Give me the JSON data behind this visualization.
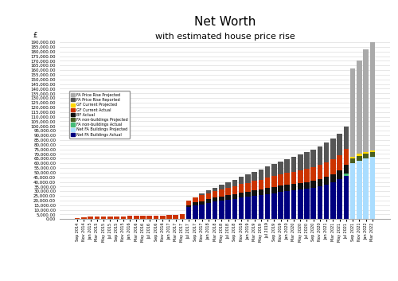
{
  "title": "Net Worth",
  "subtitle": "with estimated house price rise",
  "ylabel": "£",
  "ylim": [
    0,
    190000
  ],
  "ytick_step": 5000,
  "months": [
    "Sep 2014",
    "Nov 2014",
    "Jan 2015",
    "Mar 2015",
    "May 2015",
    "Jul 2015",
    "Sep 2015",
    "Nov 2015",
    "Jan 2016",
    "Mar 2016",
    "May 2016",
    "Jul 2016",
    "Sep 2016",
    "Nov 2016",
    "Jan 2017",
    "Mar 2017",
    "May 2017",
    "Jul 2017",
    "Sep 2017",
    "Nov 2017",
    "Jan 2018",
    "Mar 2018",
    "May 2018",
    "Jul 2018",
    "Sep 2018",
    "Nov 2018",
    "Jan 2019",
    "Mar 2019",
    "May 2019",
    "Jul 2019",
    "Sep 2019",
    "Nov 2019",
    "Jan 2020",
    "Mar 2020",
    "May 2020",
    "Jul 2020",
    "Sep 2020",
    "Nov 2020",
    "Jan 2021",
    "Mar 2021",
    "May 2021",
    "Jul 2021",
    "Sep 2021",
    "Nov 2021",
    "Jan 2022",
    "Mar 2022"
  ],
  "colors": {
    "FA Price Rise Projected": "#AAAAAA",
    "FA Price Rise Reported": "#555555",
    "GF Current Projected": "#FFD700",
    "GF Current Actual": "#CC3300",
    "BF Actual": "#111111",
    "FA non-buildings Projected": "#4A5E20",
    "FA non-buildings Actual": "#44BB77",
    "Net FA Buildings Projected": "#AADDFF",
    "Net FA Buildings Actual": "#000080"
  },
  "series_order": [
    "Net FA Buildings Actual",
    "Net FA Buildings Projected",
    "FA non-buildings Actual",
    "FA non-buildings Projected",
    "BF Actual",
    "GF Current Actual",
    "GF Current Projected",
    "FA Price Rise Reported",
    "FA Price Rise Projected"
  ],
  "legend_order": [
    "FA Price Rise Projected",
    "FA Price Rise Reported",
    "GF Current Projected",
    "GF Current Actual",
    "BF Actual",
    "FA non-buildings Projected",
    "FA non-buildings Actual",
    "Net FA Buildings Projected",
    "Net FA Buildings Actual"
  ],
  "data": {
    "FA Price Rise Projected": [
      0,
      0,
      0,
      0,
      0,
      0,
      0,
      0,
      0,
      0,
      0,
      0,
      0,
      0,
      0,
      0,
      0,
      0,
      0,
      0,
      0,
      0,
      0,
      0,
      0,
      0,
      0,
      0,
      0,
      0,
      0,
      0,
      0,
      0,
      0,
      0,
      0,
      0,
      0,
      0,
      0,
      0,
      95000,
      100000,
      110000,
      120000
    ],
    "FA Price Rise Reported": [
      0,
      0,
      0,
      0,
      0,
      0,
      0,
      0,
      0,
      0,
      0,
      0,
      0,
      0,
      0,
      0,
      0,
      0,
      0,
      2500,
      3000,
      4000,
      5000,
      6000,
      7000,
      8000,
      9000,
      10000,
      11000,
      12000,
      13000,
      14000,
      15000,
      16000,
      17000,
      18000,
      19000,
      20000,
      21000,
      22000,
      23000,
      24000,
      0,
      0,
      0,
      0
    ],
    "GF Current Projected": [
      0,
      0,
      0,
      0,
      0,
      0,
      0,
      0,
      0,
      0,
      0,
      0,
      0,
      0,
      0,
      0,
      0,
      0,
      0,
      0,
      0,
      0,
      0,
      0,
      0,
      0,
      0,
      0,
      0,
      0,
      0,
      0,
      0,
      0,
      0,
      0,
      0,
      0,
      0,
      0,
      0,
      0,
      2000,
      2000,
      2000,
      2000
    ],
    "GF Current Actual": [
      1500,
      2000,
      2500,
      2500,
      2500,
      3000,
      3000,
      3000,
      3500,
      3500,
      4000,
      4000,
      4000,
      4000,
      4500,
      4500,
      5000,
      5000,
      5500,
      6000,
      6500,
      7000,
      7500,
      8000,
      8500,
      9000,
      9500,
      10000,
      10500,
      11000,
      11500,
      12000,
      12500,
      13000,
      13500,
      14000,
      14500,
      15000,
      15500,
      16000,
      16500,
      17000,
      0,
      0,
      0,
      0
    ],
    "BF Actual": [
      0,
      0,
      0,
      0,
      0,
      0,
      0,
      0,
      0,
      0,
      0,
      0,
      0,
      0,
      0,
      0,
      0,
      2000,
      3000,
      3500,
      4000,
      4000,
      4500,
      5000,
      5000,
      5500,
      5500,
      6000,
      6000,
      6500,
      6500,
      7000,
      7000,
      7000,
      7000,
      7000,
      7500,
      8000,
      8500,
      8500,
      9000,
      9500,
      0,
      0,
      0,
      0
    ],
    "FA non-buildings Projected": [
      0,
      0,
      0,
      0,
      0,
      0,
      0,
      0,
      0,
      0,
      0,
      0,
      0,
      0,
      0,
      0,
      0,
      0,
      0,
      0,
      0,
      0,
      0,
      0,
      0,
      0,
      0,
      0,
      0,
      0,
      0,
      0,
      0,
      0,
      0,
      0,
      0,
      0,
      0,
      0,
      0,
      0,
      5000,
      5000,
      5000,
      5000
    ],
    "FA non-buildings Actual": [
      0,
      0,
      0,
      0,
      0,
      0,
      0,
      0,
      0,
      0,
      0,
      0,
      0,
      0,
      0,
      0,
      0,
      0,
      0,
      0,
      0,
      0,
      0,
      0,
      0,
      0,
      0,
      0,
      0,
      0,
      0,
      0,
      0,
      0,
      0,
      0,
      0,
      0,
      0,
      0,
      0,
      3000,
      0,
      0,
      0,
      0
    ],
    "Net FA Buildings Projected": [
      0,
      0,
      0,
      0,
      0,
      0,
      0,
      0,
      0,
      0,
      0,
      0,
      0,
      0,
      0,
      0,
      0,
      0,
      0,
      0,
      0,
      0,
      0,
      0,
      0,
      0,
      0,
      0,
      0,
      0,
      0,
      0,
      0,
      0,
      0,
      0,
      0,
      0,
      0,
      0,
      0,
      0,
      60000,
      63000,
      65000,
      67000
    ],
    "Net FA Buildings Actual": [
      0,
      0,
      0,
      0,
      0,
      0,
      0,
      0,
      0,
      0,
      0,
      0,
      0,
      0,
      0,
      0,
      0,
      13000,
      15000,
      16000,
      17500,
      19000,
      20000,
      21000,
      22000,
      23000,
      24000,
      25000,
      26000,
      27000,
      28000,
      29000,
      30000,
      31000,
      32000,
      33000,
      34000,
      35000,
      37000,
      40000,
      43000,
      46000,
      0,
      0,
      0,
      0
    ]
  },
  "bar_width": 0.8,
  "figsize": [
    5.0,
    3.53
  ],
  "dpi": 100
}
